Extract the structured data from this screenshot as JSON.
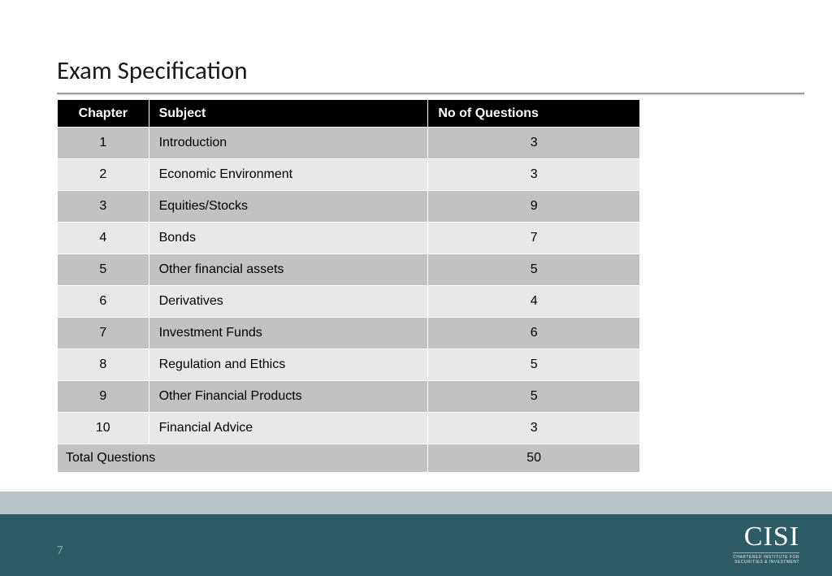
{
  "title": "Exam Specification",
  "page_number": "7",
  "logo": {
    "main": "CISI",
    "sub_line1": "CHARTERED INSTITUTE FOR",
    "sub_line2": "SECURITIES & INVESTMENT"
  },
  "colors": {
    "header_bg": "#000000",
    "header_text": "#ffffff",
    "row_odd_bg": "#c3c2c2",
    "row_even_bg": "#e9e8e8",
    "footer_dark": "#2d5c67",
    "footer_light": "#bac5c8",
    "page_number": "#88a3a9",
    "underline": "#9a9a9a"
  },
  "table": {
    "columns": [
      "Chapter",
      "Subject",
      "No of Questions"
    ],
    "rows": [
      {
        "chapter": "1",
        "subject": "Introduction",
        "questions": "3"
      },
      {
        "chapter": "2",
        "subject": "Economic Environment",
        "questions": "3"
      },
      {
        "chapter": "3",
        "subject": "Equities/Stocks",
        "questions": "9"
      },
      {
        "chapter": "4",
        "subject": "Bonds",
        "questions": "7"
      },
      {
        "chapter": "5",
        "subject": "Other financial assets",
        "questions": "5"
      },
      {
        "chapter": "6",
        "subject": "Derivatives",
        "questions": "4"
      },
      {
        "chapter": "7",
        "subject": "Investment Funds",
        "questions": "6"
      },
      {
        "chapter": "8",
        "subject": "Regulation and Ethics",
        "questions": "5"
      },
      {
        "chapter": "9",
        "subject": "Other Financial Products",
        "questions": "5"
      },
      {
        "chapter": "10",
        "subject": "Financial Advice",
        "questions": "3"
      }
    ],
    "total": {
      "label": "Total Questions",
      "value": "50"
    }
  }
}
